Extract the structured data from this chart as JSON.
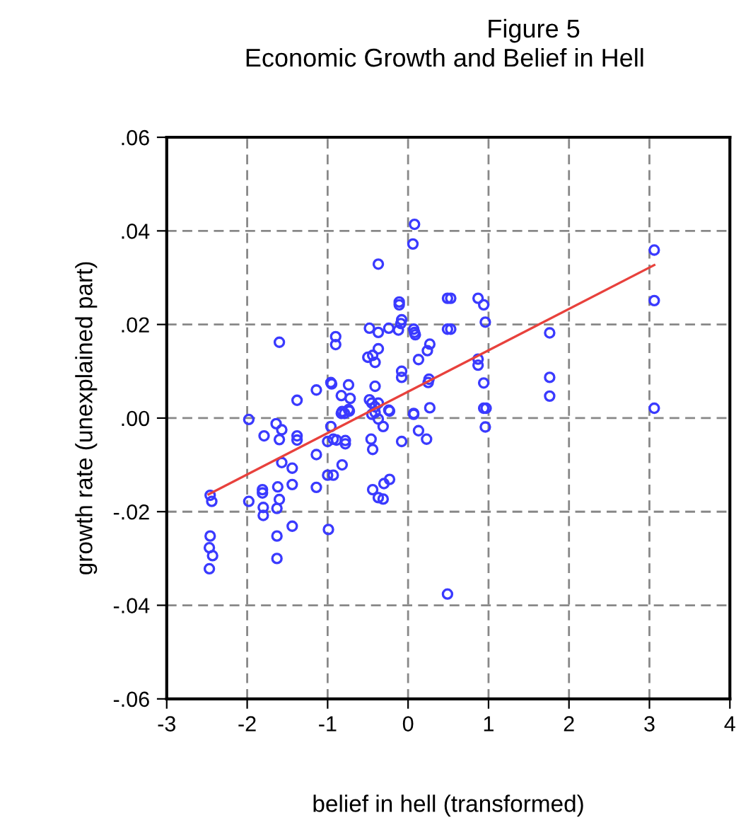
{
  "chart_data": {
    "type": "scatter",
    "title": "Figure 5",
    "subtitle": "Economic Growth and Belief in Hell",
    "xlabel": "belief in hell (transformed)",
    "ylabel": "growth rate (unexplained part)",
    "xlim": [
      -3,
      4
    ],
    "xticks": [
      -3,
      -2,
      -1,
      0,
      1,
      2,
      3,
      4
    ],
    "ylim": [
      -0.06,
      0.06
    ],
    "yticks": [
      {
        "value": -0.06,
        "label": "-.06"
      },
      {
        "value": -0.04,
        "label": "-.04"
      },
      {
        "value": -0.02,
        "label": "-.02"
      },
      {
        "value": 0,
        "label": ".00"
      },
      {
        "value": 0.02,
        "label": ".02"
      },
      {
        "value": 0.04,
        "label": ".04"
      },
      {
        "value": 0.06,
        "label": ".06"
      }
    ],
    "grid": true,
    "legend": false,
    "marker": "circle",
    "series": [
      {
        "color": "#3a3aff",
        "x": [
          0.08,
          0.06,
          -0.37,
          0.49,
          -0.11,
          -0.11,
          -0.08,
          -0.09,
          0.49,
          -0.48,
          -0.37,
          -0.24,
          -0.12,
          0.07,
          0.08,
          0.09,
          -0.9,
          -0.9,
          -1.6,
          0.27,
          0.24,
          -0.37,
          -0.5,
          -0.44,
          -0.41,
          0.13,
          -0.08,
          -0.08,
          0.26,
          0.25,
          -0.96,
          -0.95,
          -0.74,
          -0.41,
          -1.14,
          -1.38,
          -0.83,
          -0.72,
          -0.48,
          -0.45,
          -0.41,
          -0.37,
          -0.24,
          0.07,
          0.27,
          -0.82,
          -0.74,
          -1.98,
          -1.64,
          3.06,
          3.06,
          0.53,
          0.87,
          0.94,
          0.96,
          0.53,
          1.76,
          0.87,
          0.87,
          0.94,
          1.76,
          1.76,
          0.94,
          0.97,
          3.06,
          -1.57,
          -1.79,
          -1.6,
          -1.38,
          -1.38,
          -0.96,
          -1.0,
          -0.93,
          -0.89,
          -0.78,
          -0.78,
          -0.83,
          -0.79,
          -0.73,
          -0.45,
          -0.41,
          -0.37,
          -0.31,
          -0.23,
          -0.46,
          -0.44,
          -0.08,
          0.07,
          0.13,
          0.23,
          -1.14,
          -0.82,
          -1.57,
          -1.44,
          -1.81,
          -1.81,
          -1.62,
          -1.6,
          -1.44,
          -1.98,
          -1.8,
          -1.63,
          -1.8,
          -1.0,
          -0.93,
          -1.14,
          -0.44,
          -0.3,
          -0.23,
          -0.37,
          -0.31,
          -1.44,
          -1.63,
          -1.63,
          -0.99,
          -2.46,
          -2.44,
          -2.46,
          -2.47,
          -2.43,
          -2.47,
          0.49,
          0.96
        ],
        "values": [
          0.0414,
          0.0372,
          0.0329,
          0.0256,
          0.0248,
          0.0242,
          0.021,
          0.0202,
          0.019,
          0.0192,
          0.0183,
          0.0192,
          0.0188,
          0.019,
          0.0183,
          0.0178,
          0.0174,
          0.0157,
          0.0162,
          0.0158,
          0.0144,
          0.0148,
          0.013,
          0.0134,
          0.0119,
          0.0125,
          0.01,
          0.0087,
          0.0083,
          0.0076,
          0.0076,
          0.0073,
          0.0071,
          0.0068,
          0.006,
          0.0038,
          0.0048,
          0.0042,
          0.0039,
          0.0032,
          0.0024,
          0.0032,
          0.0017,
          0.001,
          0.0022,
          0.0014,
          0.0018,
          -0.0003,
          -0.0012,
          0.0359,
          0.0251,
          0.0256,
          0.0256,
          0.0242,
          0.0205,
          0.019,
          0.0182,
          0.0126,
          0.0113,
          0.0075,
          0.0087,
          0.0047,
          0.0021,
          0.0021,
          0.0021,
          -0.0025,
          -0.0038,
          -0.0046,
          -0.0038,
          -0.0047,
          -0.0018,
          -0.005,
          -0.0045,
          -0.0047,
          -0.0048,
          -0.0055,
          0.001,
          0.001,
          0.0015,
          0.0008,
          0.0012,
          -0.0002,
          -0.0018,
          0.0015,
          -0.0045,
          -0.0067,
          -0.005,
          0.0008,
          -0.0027,
          -0.0045,
          -0.0078,
          -0.01,
          -0.0095,
          -0.0107,
          -0.0153,
          -0.016,
          -0.0147,
          -0.0174,
          -0.0142,
          -0.0178,
          -0.0191,
          -0.0193,
          -0.0208,
          -0.0122,
          -0.0122,
          -0.0148,
          -0.0153,
          -0.014,
          -0.0131,
          -0.017,
          -0.0173,
          -0.0231,
          -0.0252,
          -0.03,
          -0.0238,
          -0.0165,
          -0.0178,
          -0.0252,
          -0.0277,
          -0.0294,
          -0.0322,
          -0.0376,
          -0.0019
        ]
      },
      {
        "type": "line",
        "color": "#e8413c",
        "marker": "none",
        "line_style": "solid",
        "x": [
          -2.48,
          3.06
        ],
        "values": [
          -0.0163,
          0.0327
        ]
      }
    ]
  }
}
